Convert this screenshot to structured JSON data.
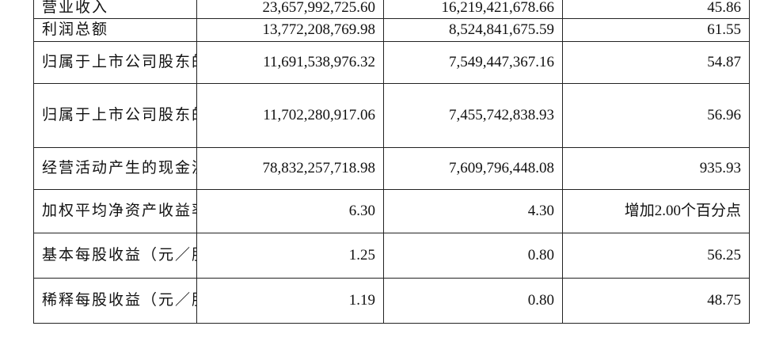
{
  "table": {
    "rows": [
      {
        "label": "营业收入",
        "current": "23,657,992,725.60",
        "previous": "16,219,421,678.66",
        "change": "45.86"
      },
      {
        "label": "利润总额",
        "current": "13,772,208,769.98",
        "previous": "8,524,841,675.59",
        "change": "61.55"
      },
      {
        "label": "归属于上市公司股东的净利润",
        "current": "11,691,538,976.32",
        "previous": "7,549,447,367.16",
        "change": "54.87"
      },
      {
        "label": "归属于上市公司股东的扣除非经常性损益的净利润",
        "current": "11,702,280,917.06",
        "previous": "7,455,742,838.93",
        "change": "56.96"
      },
      {
        "label": "经营活动产生的现金流量净额",
        "current": "78,832,257,718.98",
        "previous": "7,609,796,448.08",
        "change": "935.93"
      },
      {
        "label": "加权平均净资产收益率（%）",
        "current": "6.30",
        "previous": "4.30",
        "change": "增加2.00个百分点"
      },
      {
        "label": "基本每股收益（元／股）",
        "current": "1.25",
        "previous": "0.80",
        "change": "56.25"
      },
      {
        "label": "稀释每股收益（元／股）",
        "current": "1.19",
        "previous": "0.80",
        "change": "48.75"
      }
    ]
  }
}
